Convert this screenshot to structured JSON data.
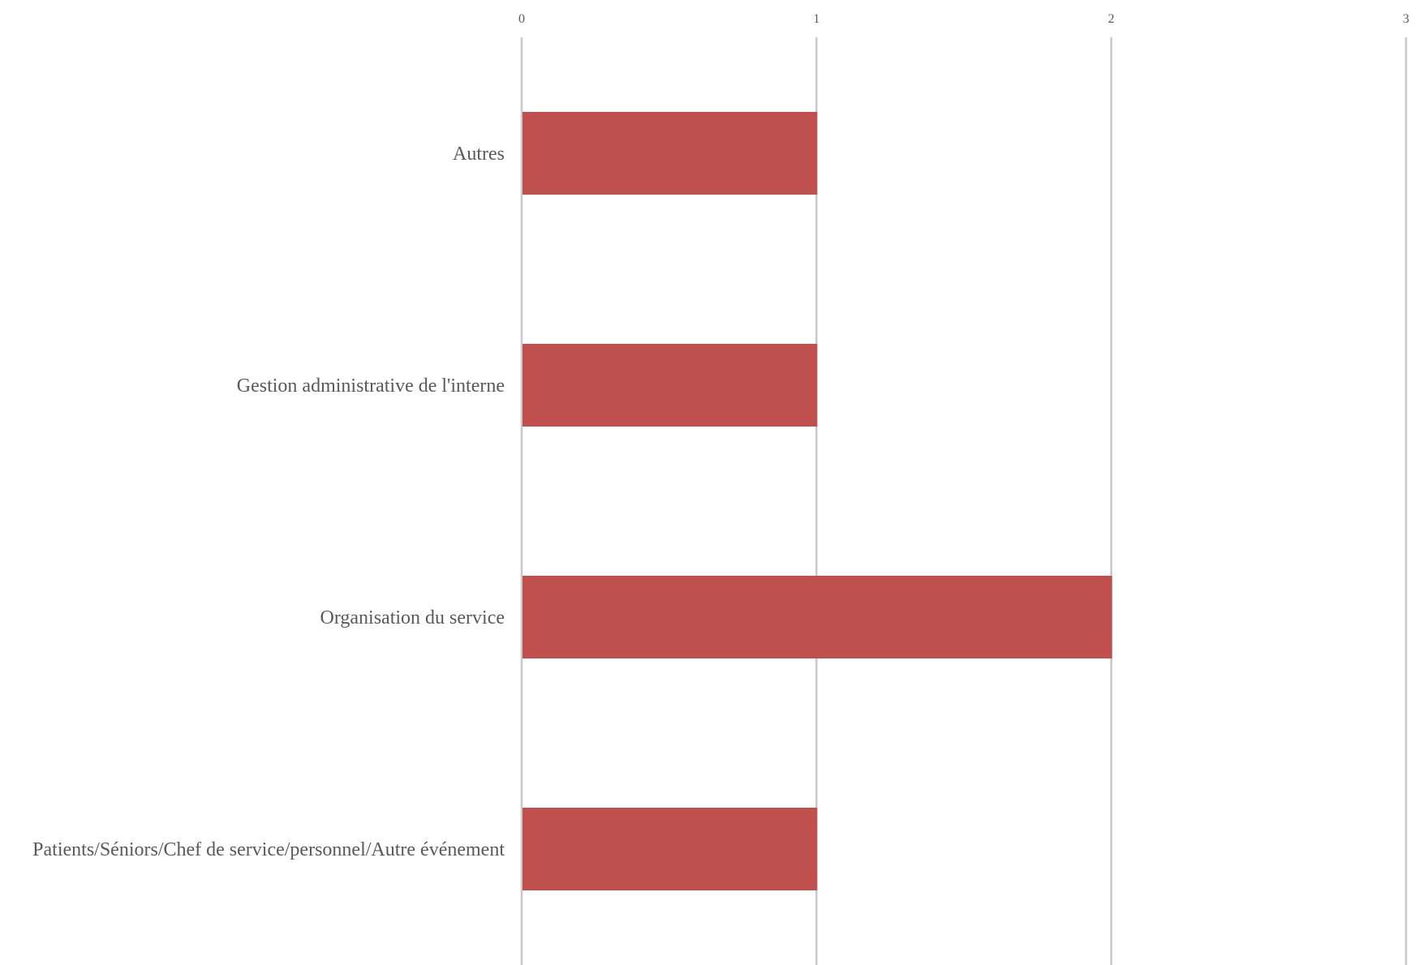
{
  "chart_data": {
    "type": "bar",
    "orientation": "horizontal",
    "categories": [
      "Autres",
      "Gestion administrative de l'interne",
      "Organisation du service",
      "Patients/Séniors/Chef de service/personnel/Autre événement"
    ],
    "values": [
      1,
      1,
      2,
      1
    ],
    "title": "",
    "xlabel": "",
    "ylabel": "",
    "xlim": [
      0,
      3
    ],
    "x_ticks": [
      "0",
      "1",
      "2",
      "3"
    ],
    "x_axis_position": "top",
    "grid": true,
    "legend": "none",
    "bar_color": "#c0504d",
    "grid_color": "#c8c8c8"
  }
}
